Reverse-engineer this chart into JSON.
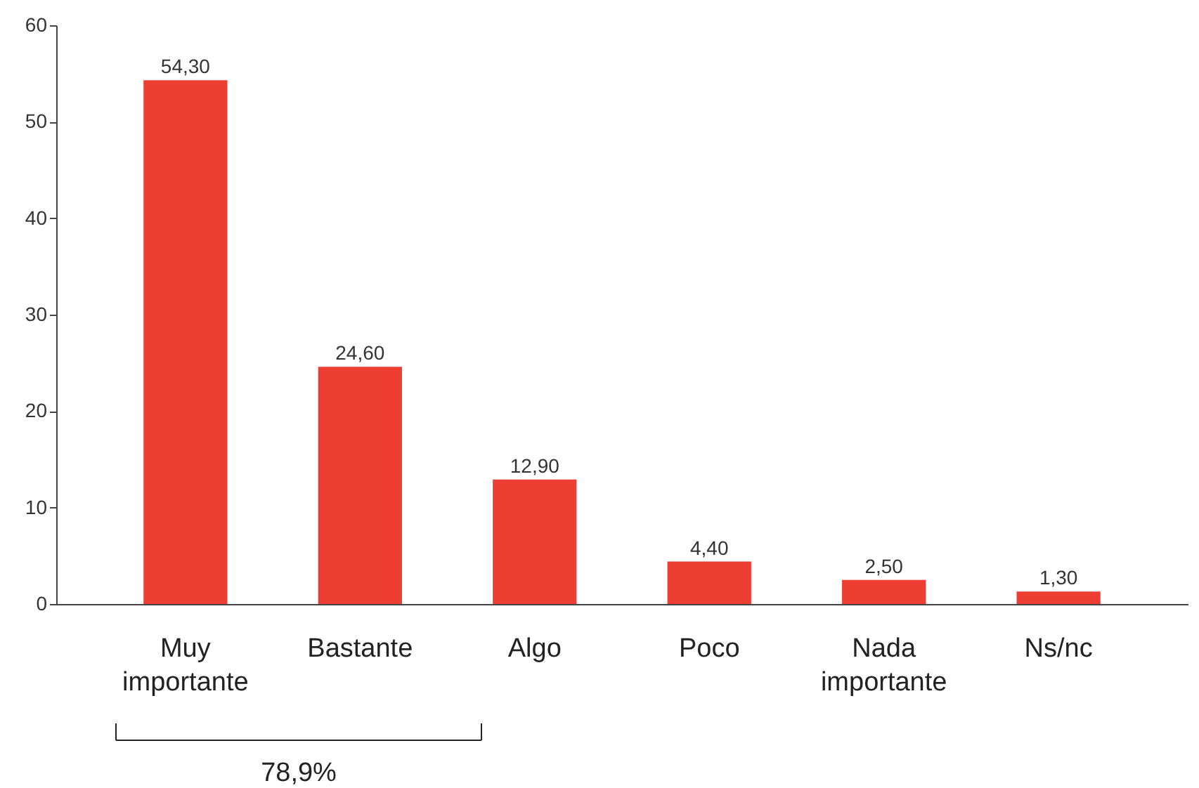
{
  "chart_data": {
    "type": "bar",
    "categories": [
      "Muy importante",
      "Bastante",
      "Algo",
      "Poco",
      "Nada importante",
      "Ns/nc"
    ],
    "values": [
      54.3,
      24.6,
      12.9,
      4.4,
      2.5,
      1.3
    ],
    "color": "#ee3e33",
    "ylim": [
      0,
      60
    ],
    "yticks": [
      0,
      10,
      20,
      30,
      40,
      50,
      60
    ],
    "value_labels": [
      "54,30",
      "24,60",
      "12,90",
      "4,40",
      "2,50",
      "1,30"
    ],
    "grid": false,
    "annotations": [
      "78,9%"
    ]
  }
}
